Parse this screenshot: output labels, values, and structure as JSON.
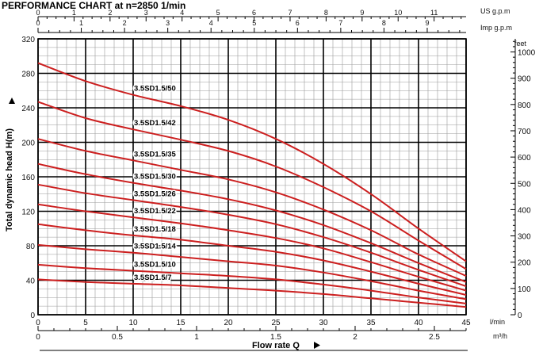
{
  "chart_data": {
    "type": "line",
    "title": "PERFORMANCE CHART at n=2850 1/min",
    "ylabel": "Total dynamic head H(m)",
    "xlabel": "Flow rate Q",
    "x_unit": "l/min",
    "y_right_unit": "feet",
    "x2_unit": "m³/h",
    "top1_unit": "US g.p.m",
    "top2_unit": "Imp g.p.m",
    "xlim": [
      0,
      45
    ],
    "ylim": [
      0,
      320
    ],
    "x_ticks": [
      "0",
      "5",
      "10",
      "15",
      "20",
      "25",
      "30",
      "35",
      "40",
      "45"
    ],
    "y_ticks": [
      "0",
      "40",
      "80",
      "120",
      "160",
      "200",
      "240",
      "280",
      "320"
    ],
    "feet_ticks": [
      "0",
      "100",
      "200",
      "300",
      "400",
      "500",
      "600",
      "700",
      "800",
      "900",
      "1000"
    ],
    "m3h_ticks": [
      "0",
      "0.5",
      "1",
      "1.5",
      "2",
      "2.5"
    ],
    "usgpm_ticks": [
      "0",
      "1",
      "2",
      "3",
      "4",
      "5",
      "6",
      "7",
      "8",
      "9",
      "10",
      "11"
    ],
    "impgpm_ticks": [
      "0",
      "1",
      "2",
      "3",
      "4",
      "5",
      "6",
      "7",
      "8",
      "9"
    ],
    "grid": true,
    "series": [
      {
        "name": "3.5SD1.5/50",
        "x": [
          0,
          5,
          10,
          15,
          20,
          25,
          30,
          35,
          40,
          45
        ],
        "y": [
          292,
          271,
          255,
          242,
          226,
          204,
          175,
          140,
          100,
          62
        ]
      },
      {
        "name": "3.5SD1.5/42",
        "x": [
          0,
          5,
          10,
          15,
          20,
          25,
          30,
          35,
          40,
          45
        ],
        "y": [
          247,
          228,
          215,
          203,
          190,
          172,
          148,
          120,
          86,
          53
        ]
      },
      {
        "name": "3.5SD1.5/35",
        "x": [
          0,
          5,
          10,
          15,
          20,
          25,
          30,
          35,
          40,
          45
        ],
        "y": [
          204,
          190,
          179,
          168,
          157,
          142,
          122,
          98,
          70,
          45
        ]
      },
      {
        "name": "3.5SD1.5/30",
        "x": [
          0,
          5,
          10,
          15,
          20,
          25,
          30,
          35,
          40,
          45
        ],
        "y": [
          175,
          163,
          153,
          144,
          134,
          121,
          104,
          83,
          60,
          38
        ]
      },
      {
        "name": "3.5SD1.5/26",
        "x": [
          0,
          5,
          10,
          15,
          20,
          25,
          30,
          35,
          40,
          45
        ],
        "y": [
          151,
          141,
          133,
          125,
          116,
          105,
          90,
          72,
          52,
          33
        ]
      },
      {
        "name": "3.5SD1.5/22",
        "x": [
          0,
          5,
          10,
          15,
          20,
          25,
          30,
          35,
          40,
          45
        ],
        "y": [
          128,
          120,
          113,
          106,
          98,
          89,
          77,
          61,
          44,
          28
        ]
      },
      {
        "name": "3.5SD1.5/18",
        "x": [
          0,
          5,
          10,
          15,
          20,
          25,
          30,
          35,
          40,
          45
        ],
        "y": [
          105,
          98,
          92,
          87,
          80,
          73,
          63,
          50,
          36,
          23
        ]
      },
      {
        "name": "3.5SD1.5/14",
        "x": [
          0,
          5,
          10,
          15,
          20,
          25,
          30,
          35,
          40,
          45
        ],
        "y": [
          81,
          76,
          72,
          67,
          62,
          57,
          49,
          39,
          28,
          18
        ]
      },
      {
        "name": "3.5SD1.5/10",
        "x": [
          0,
          5,
          10,
          15,
          20,
          25,
          30,
          35,
          40,
          45
        ],
        "y": [
          58,
          54,
          51,
          48,
          45,
          41,
          35,
          28,
          20,
          13
        ]
      },
      {
        "name": "3.5SD1.5/7",
        "x": [
          0,
          5,
          10,
          15,
          20,
          25,
          30,
          35,
          40,
          45
        ],
        "y": [
          41,
          38,
          36,
          34,
          31,
          28,
          24,
          19,
          14,
          9
        ]
      }
    ],
    "series_color": "#cc1f1f"
  }
}
